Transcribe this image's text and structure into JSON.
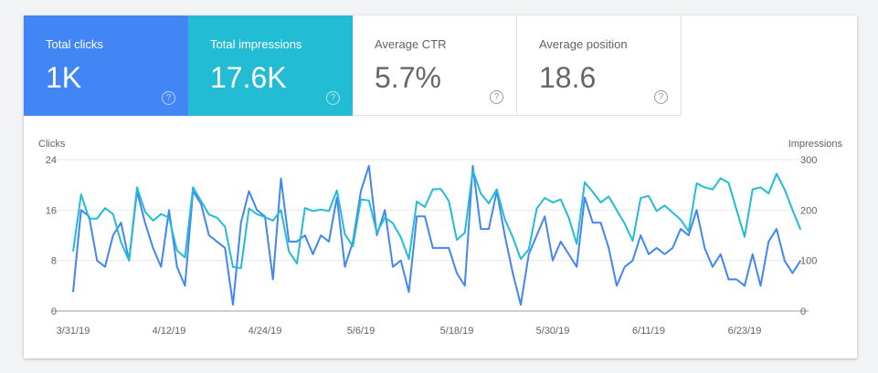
{
  "metrics": [
    {
      "label": "Total clicks",
      "value": "1K",
      "help": "?"
    },
    {
      "label": "Total impressions",
      "value": "17.6K",
      "help": "?"
    },
    {
      "label": "Average CTR",
      "value": "5.7%",
      "help": "?"
    },
    {
      "label": "Average position",
      "value": "18.6",
      "help": "?"
    }
  ],
  "colors": {
    "clicks": "#4285f4",
    "impressions": "#22bcd4",
    "grid": "#e8eaed",
    "axis": "#9aa0a6"
  },
  "chart_data": {
    "type": "line",
    "start_date": "3/31/19",
    "x_tick_labels": [
      "3/31/19",
      "4/12/19",
      "4/24/19",
      "5/6/19",
      "5/18/19",
      "5/30/19",
      "6/11/19",
      "6/23/19"
    ],
    "x_tick_every_days": 12,
    "ylabel_left": "Clicks",
    "ylabel_right": "Impressions",
    "ylim_left": [
      0,
      24
    ],
    "yticks_left": [
      "0",
      "8",
      "16",
      "24"
    ],
    "ylim_right": [
      0,
      300
    ],
    "yticks_right": [
      "0",
      "100",
      "200",
      "300"
    ],
    "grid": true,
    "series": [
      {
        "name": "Clicks",
        "axis": "left",
        "values": [
          3,
          16,
          15,
          8,
          7,
          12,
          14,
          8,
          19,
          14,
          10,
          7,
          16,
          7,
          4,
          19,
          17,
          12,
          11,
          10,
          1,
          14,
          19,
          16,
          15,
          5,
          21,
          11,
          11,
          12,
          9,
          12,
          11,
          18,
          7,
          11,
          19,
          23,
          12,
          16,
          7,
          8,
          3,
          15,
          15,
          10,
          10,
          10,
          6,
          4,
          23,
          13,
          13,
          19,
          12,
          6,
          1,
          9,
          12,
          15,
          8,
          11,
          9,
          7,
          18,
          14,
          14,
          10,
          4,
          7,
          8,
          12,
          9,
          10,
          9,
          10,
          13,
          12,
          16,
          10,
          7,
          9,
          5,
          5,
          4,
          9,
          4,
          11,
          13,
          8,
          6,
          8
        ]
      },
      {
        "name": "Impressions",
        "axis": "right",
        "values": [
          118,
          231,
          183,
          183,
          204,
          192,
          136,
          100,
          245,
          197,
          179,
          192,
          185,
          120,
          106,
          245,
          218,
          191,
          185,
          167,
          87,
          85,
          203,
          192,
          186,
          179,
          200,
          118,
          94,
          204,
          198,
          201,
          198,
          239,
          152,
          128,
          221,
          219,
          155,
          185,
          174,
          146,
          103,
          217,
          206,
          241,
          242,
          218,
          141,
          155,
          278,
          233,
          213,
          241,
          182,
          146,
          103,
          122,
          203,
          224,
          215,
          221,
          185,
          133,
          255,
          236,
          215,
          227,
          200,
          173,
          139,
          224,
          228,
          198,
          209,
          195,
          181,
          158,
          253,
          245,
          241,
          263,
          254,
          200,
          147,
          241,
          245,
          233,
          272,
          241,
          200,
          161
        ]
      }
    ]
  }
}
